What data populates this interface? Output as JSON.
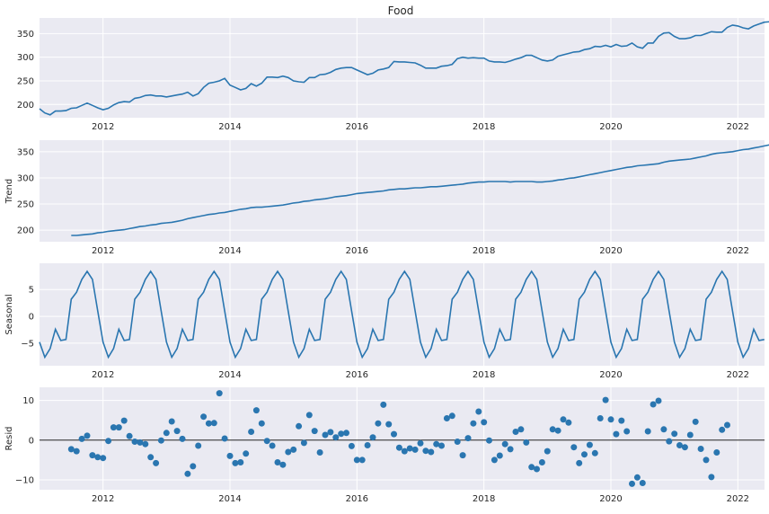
{
  "figure_title": "Food",
  "x_ticks": [
    "2012",
    "2014",
    "2016",
    "2018",
    "2020",
    "2022"
  ],
  "colors": {
    "line": "#2a76b0",
    "plot_bg": "#eaeaf2",
    "grid": "#ffffff",
    "zero_line": "#000000"
  },
  "chart_data": [
    {
      "type": "line",
      "name": "observed",
      "ylabel": "",
      "title": "Food",
      "xlim": [
        2011.0,
        2022.42
      ],
      "ylim": [
        172,
        383
      ],
      "yticks": [
        "200",
        "250",
        "300",
        "350"
      ],
      "x_start": 2011.0,
      "x_step_months": 1,
      "values": [
        191,
        182,
        178,
        186,
        186,
        187,
        192,
        193,
        198,
        203,
        198,
        193,
        189,
        192,
        199,
        204,
        206,
        205,
        213,
        215,
        219,
        220,
        218,
        218,
        216,
        218,
        220,
        222,
        226,
        218,
        223,
        236,
        245,
        247,
        250,
        255,
        241,
        236,
        231,
        234,
        244,
        239,
        245,
        258,
        258,
        257,
        260,
        257,
        250,
        248,
        247,
        257,
        257,
        263,
        264,
        268,
        274,
        277,
        278,
        278,
        273,
        268,
        263,
        266,
        273,
        275,
        278,
        291,
        290,
        290,
        289,
        288,
        283,
        277,
        277,
        277,
        281,
        282,
        285,
        297,
        300,
        298,
        299,
        298,
        298,
        292,
        290,
        290,
        289,
        292,
        296,
        299,
        304,
        304,
        299,
        294,
        292,
        294,
        302,
        305,
        308,
        311,
        312,
        316,
        318,
        323,
        322,
        325,
        322,
        327,
        323,
        324,
        330,
        322,
        319,
        330,
        330,
        344,
        351,
        352,
        344,
        339,
        339,
        341,
        346,
        346,
        350,
        354,
        353,
        353,
        363,
        368,
        366,
        362,
        360,
        366,
        370,
        374,
        375,
        376,
        372
      ]
    },
    {
      "type": "line",
      "name": "trend",
      "ylabel": "Trend",
      "xlim": [
        2011.0,
        2022.42
      ],
      "ylim": [
        178,
        372
      ],
      "yticks": [
        "200",
        "250",
        "300",
        "350"
      ],
      "x_start": 2011.5,
      "x_step_months": 1,
      "values": [
        190,
        190,
        191,
        192,
        193,
        195,
        196,
        198,
        199,
        200,
        201,
        203,
        205,
        207,
        208,
        210,
        211,
        213,
        214,
        215,
        217,
        219,
        222,
        224,
        226,
        228,
        230,
        231,
        233,
        234,
        236,
        238,
        240,
        241,
        243,
        244,
        244,
        245,
        246,
        247,
        248,
        250,
        252,
        253,
        255,
        256,
        258,
        259,
        260,
        262,
        264,
        265,
        266,
        268,
        270,
        271,
        272,
        273,
        274,
        275,
        277,
        278,
        279,
        279,
        280,
        281,
        281,
        282,
        283,
        283,
        284,
        285,
        286,
        287,
        288,
        290,
        291,
        292,
        292,
        293,
        293,
        293,
        293,
        292,
        293,
        293,
        293,
        293,
        292,
        292,
        293,
        294,
        296,
        297,
        299,
        300,
        302,
        304,
        306,
        308,
        310,
        312,
        314,
        316,
        318,
        320,
        321,
        323,
        324,
        325,
        326,
        327,
        330,
        332,
        333,
        334,
        335,
        336,
        338,
        340,
        342,
        345,
        347,
        348,
        349,
        350,
        352,
        354,
        355,
        357,
        359,
        361,
        363
      ]
    },
    {
      "type": "line",
      "name": "seasonal",
      "ylabel": "Seasonal",
      "xlim": [
        2011.0,
        2022.42
      ],
      "ylim": [
        -9.2,
        9.9
      ],
      "yticks": [
        "−5",
        "0",
        "5"
      ],
      "x_start": 2011.0,
      "x_step_months": 1,
      "period": 12,
      "pattern": [
        -4.8,
        -7.6,
        -6.0,
        -2.4,
        -4.5,
        -4.3,
        3.2,
        4.5,
        6.9,
        8.4,
        6.9,
        1.0
      ],
      "periods": 11.5
    },
    {
      "type": "scatter",
      "name": "resid",
      "ylabel": "Resid",
      "xlim": [
        2011.0,
        2022.42
      ],
      "ylim": [
        -12.5,
        13.3
      ],
      "yticks": [
        "−10",
        "0",
        "10"
      ],
      "x_start": 2011.5,
      "x_step_months": 1,
      "values": [
        -2.3,
        -2.8,
        0.3,
        1.1,
        -3.8,
        -4.3,
        -4.5,
        -0.2,
        3.2,
        3.2,
        4.9,
        1.0,
        -0.4,
        -0.6,
        -1.0,
        -4.3,
        -5.8,
        -0.1,
        1.8,
        4.7,
        2.3,
        0.3,
        -8.5,
        -6.6,
        -1.4,
        5.9,
        4.2,
        4.3,
        11.8,
        0.4,
        -4.0,
        -5.8,
        -5.6,
        -3.4,
        2.1,
        7.5,
        4.2,
        -0.2,
        -1.4,
        -5.6,
        -6.2,
        -3.0,
        -2.4,
        3.5,
        -0.7,
        6.3,
        2.3,
        -3.1,
        1.3,
        2.0,
        0.7,
        1.6,
        1.8,
        -1.5,
        -5.0,
        -5.0,
        -1.3,
        0.7,
        4.2,
        8.9,
        4.0,
        1.5,
        -1.9,
        -2.8,
        -2.1,
        -2.4,
        -0.8,
        -2.7,
        -3.0,
        -1.0,
        -1.4,
        5.5,
        6.1,
        -0.4,
        -3.8,
        0.5,
        4.2,
        7.2,
        4.5,
        -0.1,
        -5.0,
        -3.9,
        -1.0,
        -2.3,
        2.1,
        2.7,
        -0.6,
        -6.8,
        -7.3,
        -5.6,
        -2.8,
        2.7,
        2.4,
        5.2,
        4.4,
        -1.8,
        -5.8,
        -3.6,
        -1.2,
        -3.3,
        5.5,
        10.1,
        5.2,
        1.5,
        4.9,
        2.2,
        -11.0,
        -9.4,
        -10.8,
        2.2,
        9.0,
        9.9,
        2.7,
        -0.3,
        1.6,
        -1.3,
        -1.8,
        1.3,
        4.6,
        -2.2,
        -5.0,
        -9.3,
        -3.1,
        2.6,
        3.8
      ]
    }
  ]
}
